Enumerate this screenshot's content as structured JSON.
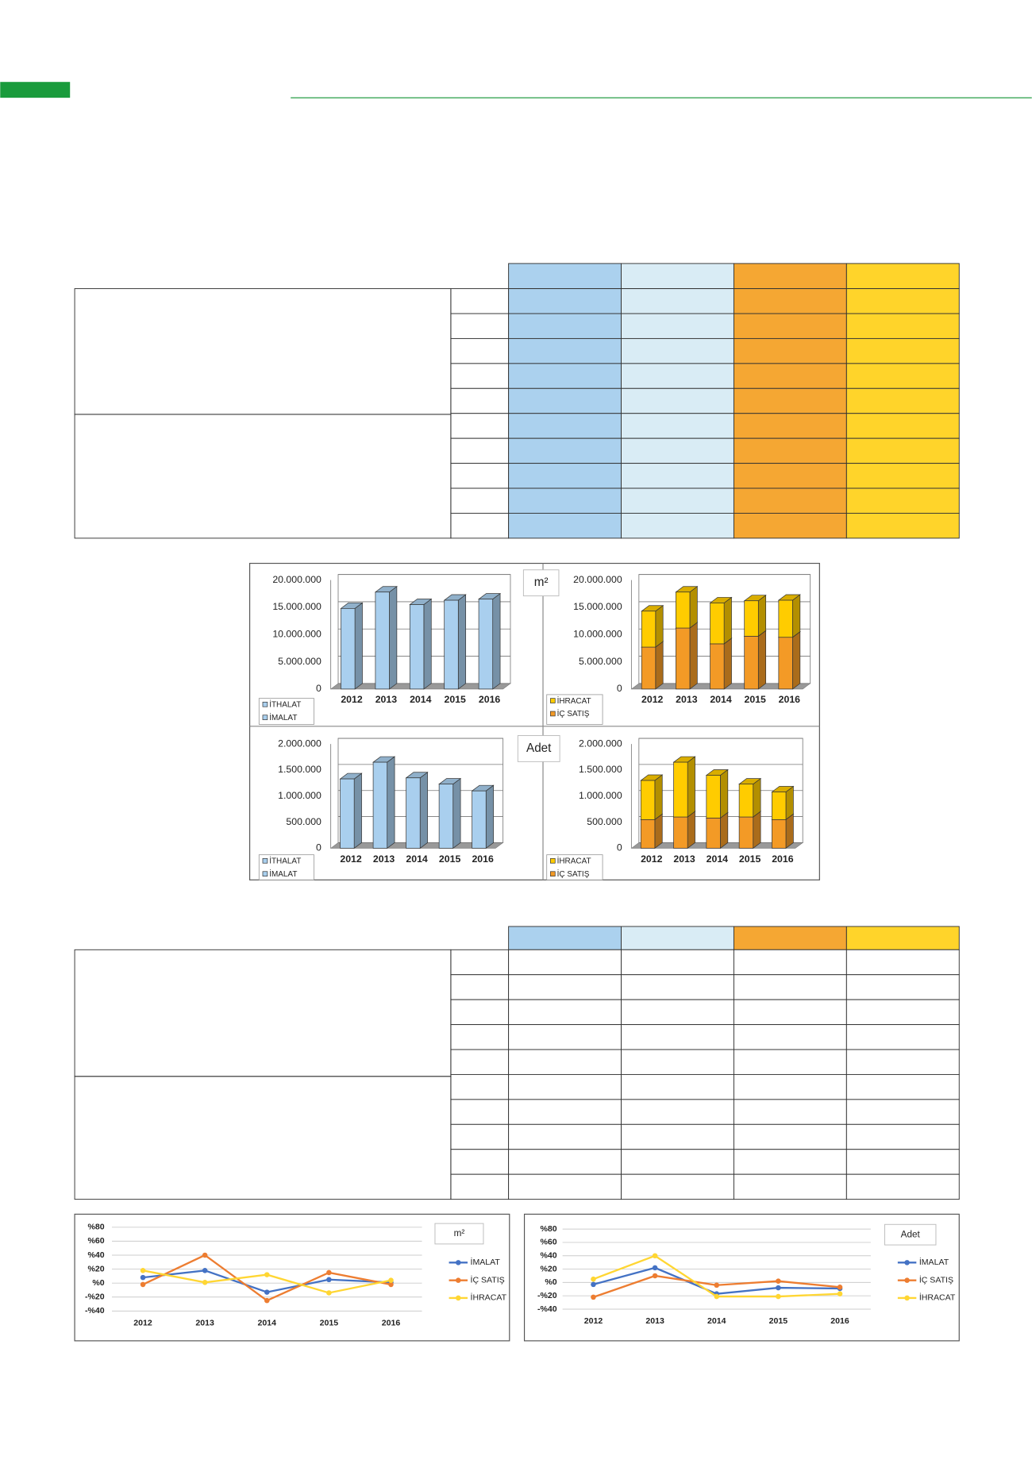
{
  "chart_data": [
    {
      "type": "bar",
      "unit": "m²",
      "categories": [
        "2012",
        "2013",
        "2014",
        "2015",
        "2016"
      ],
      "series": [
        {
          "name": "İTHALAT",
          "color": "#a9cfee",
          "values": [
            null,
            null,
            null,
            null,
            null
          ]
        },
        {
          "name": "İMALAT",
          "color": "#a9cfee",
          "values": [
            14800000,
            17800000,
            15500000,
            16300000,
            16500000
          ]
        }
      ],
      "ylim": [
        0,
        20000000
      ],
      "yticks": [
        0,
        {
          "value": 5000000,
          "label": "5.000.000"
        },
        {
          "value": 10000000,
          "label": "10.000.000"
        },
        {
          "value": 15000000,
          "label": "15.000.000"
        },
        {
          "value": 20000000,
          "label": "20.000.000"
        }
      ],
      "grid": true
    },
    {
      "type": "stacked_bar",
      "categories": [
        "2012",
        "2013",
        "2014",
        "2015",
        "2016"
      ],
      "series": [
        {
          "name": "İÇ SATIŞ",
          "color": "#f39a26",
          "values": [
            7700000,
            11200000,
            8300000,
            9700000,
            9500000
          ]
        },
        {
          "name": "İHRACAT",
          "color": "#ffcc00",
          "values": [
            6600000,
            6600000,
            7500000,
            6500000,
            6800000
          ]
        }
      ],
      "ylim": [
        0,
        20000000
      ],
      "yticks": [
        0,
        {
          "value": 5000000,
          "label": "5.000.000"
        },
        {
          "value": 10000000,
          "label": "10.000.000"
        },
        {
          "value": 15000000,
          "label": "15.000.000"
        },
        {
          "value": 20000000,
          "label": "20.000.000"
        }
      ],
      "grid": true
    },
    {
      "type": "bar",
      "unit": "Adet",
      "categories": [
        "2012",
        "2013",
        "2014",
        "2015",
        "2016"
      ],
      "series": [
        {
          "name": "İTHALAT",
          "color": "#a9cfee",
          "values": [
            null,
            null,
            null,
            null,
            null
          ]
        },
        {
          "name": "İMALAT",
          "color": "#a9cfee",
          "values": [
            1330000,
            1650000,
            1350000,
            1230000,
            1100000
          ]
        }
      ],
      "ylim": [
        0,
        2000000
      ],
      "yticks": [
        0,
        {
          "value": 500000,
          "label": "500.000"
        },
        {
          "value": 1000000,
          "label": "1.000.000"
        },
        {
          "value": 1500000,
          "label": "1.500.000"
        },
        {
          "value": 2000000,
          "label": "2.000.000"
        }
      ],
      "grid": true
    },
    {
      "type": "stacked_bar",
      "categories": [
        "2012",
        "2013",
        "2014",
        "2015",
        "2016"
      ],
      "series": [
        {
          "name": "İÇ SATIŞ",
          "color": "#f39a26",
          "values": [
            550000,
            600000,
            580000,
            600000,
            550000
          ]
        },
        {
          "name": "İHRACAT",
          "color": "#ffcc00",
          "values": [
            750000,
            1050000,
            820000,
            630000,
            530000
          ]
        }
      ],
      "ylim": [
        0,
        2000000
      ],
      "yticks": [
        0,
        {
          "value": 500000,
          "label": "500.000"
        },
        {
          "value": 1000000,
          "label": "1.000.000"
        },
        {
          "value": 1500000,
          "label": "1.500.000"
        },
        {
          "value": 2000000,
          "label": "2.000.000"
        }
      ],
      "grid": true
    },
    {
      "type": "line",
      "unit": "m²",
      "categories": [
        "2012",
        "2013",
        "2014",
        "2015",
        "2016"
      ],
      "series": [
        {
          "name": "İMALAT",
          "color": "#4472c4",
          "values": [
            8,
            18,
            -13,
            5,
            1
          ]
        },
        {
          "name": "İÇ SATIŞ",
          "color": "#ed7d31",
          "values": [
            -2,
            40,
            -25,
            15,
            -2
          ]
        },
        {
          "name": "İHRACAT",
          "color": "#ffd633",
          "values": [
            18,
            1,
            12,
            -14,
            4
          ]
        }
      ],
      "ylim": [
        -40,
        80
      ],
      "yticks": [
        {
          "value": -40,
          "label": "-%40"
        },
        {
          "value": -20,
          "label": "-%20"
        },
        {
          "value": 0,
          "label": "%0"
        },
        {
          "value": 20,
          "label": "%20"
        },
        {
          "value": 40,
          "label": "%40"
        },
        {
          "value": 60,
          "label": "%60"
        },
        {
          "value": 80,
          "label": "%80"
        }
      ],
      "grid": true
    },
    {
      "type": "line",
      "unit": "Adet",
      "categories": [
        "2012",
        "2013",
        "2014",
        "2015",
        "2016"
      ],
      "series": [
        {
          "name": "İMALAT",
          "color": "#4472c4",
          "values": [
            -3,
            22,
            -17,
            -8,
            -9
          ]
        },
        {
          "name": "İÇ SATIŞ",
          "color": "#ed7d31",
          "values": [
            -22,
            10,
            -4,
            2,
            -7
          ]
        },
        {
          "name": "İHRACAT",
          "color": "#ffd633",
          "values": [
            5,
            40,
            -21,
            -21,
            -17
          ]
        }
      ],
      "ylim": [
        -40,
        80
      ],
      "yticks": [
        {
          "value": -40,
          "label": "-%40"
        },
        {
          "value": -20,
          "label": "-%20"
        },
        {
          "value": 0,
          "label": "%0"
        },
        {
          "value": 20,
          "label": "%20"
        },
        {
          "value": 40,
          "label": "%40"
        },
        {
          "value": 60,
          "label": "%60"
        },
        {
          "value": 80,
          "label": "%80"
        }
      ],
      "grid": true
    }
  ]
}
